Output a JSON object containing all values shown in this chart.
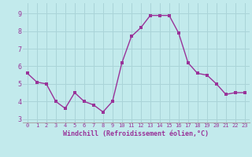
{
  "x": [
    0,
    1,
    2,
    3,
    4,
    5,
    6,
    7,
    8,
    9,
    10,
    11,
    12,
    13,
    14,
    15,
    16,
    17,
    18,
    19,
    20,
    21,
    22,
    23
  ],
  "y": [
    5.6,
    5.1,
    5.0,
    4.0,
    3.6,
    4.5,
    4.0,
    3.8,
    3.4,
    4.0,
    6.2,
    7.7,
    8.2,
    8.9,
    8.9,
    8.9,
    7.9,
    6.2,
    5.6,
    5.5,
    5.0,
    4.4,
    4.5,
    4.5
  ],
  "line_color": "#993399",
  "marker_color": "#993399",
  "bg_color": "#c2eaec",
  "grid_color": "#aad4d8",
  "xlabel": "Windchill (Refroidissement éolien,°C)",
  "xlabel_color": "#993399",
  "tick_color": "#993399",
  "spine_color": "#aaaaaa",
  "xlim": [
    -0.5,
    23.5
  ],
  "ylim": [
    2.8,
    9.6
  ],
  "yticks": [
    3,
    4,
    5,
    6,
    7,
    8,
    9
  ],
  "xticks": [
    0,
    1,
    2,
    3,
    4,
    5,
    6,
    7,
    8,
    9,
    10,
    11,
    12,
    13,
    14,
    15,
    16,
    17,
    18,
    19,
    20,
    21,
    22,
    23
  ],
  "linewidth": 1.0,
  "markersize": 2.5,
  "xlabel_fontsize": 6.0,
  "tick_fontsize_x": 5.0,
  "tick_fontsize_y": 6.0
}
